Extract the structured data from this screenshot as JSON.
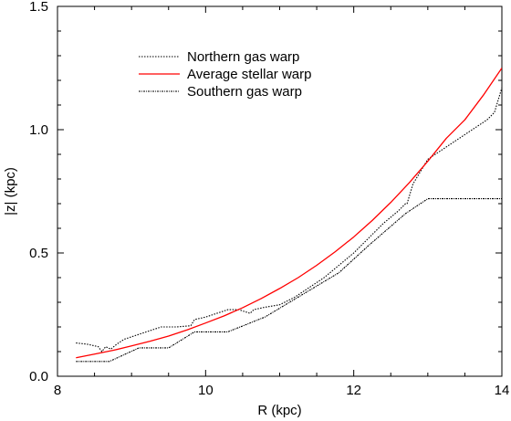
{
  "chart_data": {
    "type": "line",
    "title": "",
    "xlabel": "R (kpc)",
    "ylabel": "|z| (kpc)",
    "xlim": [
      8,
      14
    ],
    "ylim": [
      0,
      1.5
    ],
    "xticks": [
      8,
      10,
      12,
      14
    ],
    "yticks": [
      0,
      0.5,
      1.0,
      1.5
    ],
    "xtick_labels": [
      "8",
      "10",
      "12",
      "14"
    ],
    "ytick_labels": [
      "0.0",
      "0.5",
      "1.0",
      "1.5"
    ],
    "grid": false,
    "legend_position": "top-left",
    "series": [
      {
        "name": "Northern gas warp",
        "color": "#000000",
        "style": "dotted",
        "x": [
          8.25,
          8.4,
          8.55,
          8.6,
          8.65,
          8.72,
          8.8,
          8.9,
          9.0,
          9.2,
          9.4,
          9.6,
          9.8,
          9.85,
          10.0,
          10.2,
          10.3,
          10.45,
          10.6,
          10.65,
          10.8,
          11.0,
          11.2,
          11.4,
          11.6,
          11.8,
          12.0,
          12.2,
          12.4,
          12.6,
          12.7,
          12.72,
          12.8,
          13.0,
          13.2,
          13.4,
          13.6,
          13.8,
          13.9,
          14.0
        ],
        "y": [
          0.135,
          0.13,
          0.12,
          0.1,
          0.12,
          0.11,
          0.13,
          0.15,
          0.16,
          0.18,
          0.2,
          0.2,
          0.205,
          0.23,
          0.24,
          0.26,
          0.27,
          0.27,
          0.255,
          0.27,
          0.28,
          0.29,
          0.32,
          0.36,
          0.4,
          0.45,
          0.5,
          0.56,
          0.62,
          0.67,
          0.7,
          0.7,
          0.78,
          0.88,
          0.92,
          0.96,
          1.0,
          1.04,
          1.07,
          1.17
        ]
      },
      {
        "name": "Average stellar warp",
        "color": "#ff0000",
        "style": "solid",
        "x": [
          8.25,
          8.5,
          8.75,
          9.0,
          9.25,
          9.5,
          9.75,
          10.0,
          10.25,
          10.5,
          10.75,
          11.0,
          11.25,
          11.5,
          11.75,
          12.0,
          12.25,
          12.5,
          12.75,
          13.0,
          13.25,
          13.5,
          13.75,
          14.0
        ],
        "y": [
          0.075,
          0.09,
          0.105,
          0.123,
          0.142,
          0.163,
          0.188,
          0.216,
          0.245,
          0.278,
          0.315,
          0.356,
          0.4,
          0.45,
          0.505,
          0.565,
          0.632,
          0.705,
          0.785,
          0.872,
          0.965,
          1.04,
          1.14,
          1.25
        ]
      },
      {
        "name": "Southern gas warp",
        "color": "#000000",
        "style": "dashdot",
        "x": [
          8.25,
          8.7,
          9.1,
          9.5,
          9.85,
          10.3,
          10.8,
          11.3,
          11.8,
          12.2,
          12.7,
          13.0,
          13.5,
          14.0
        ],
        "y": [
          0.06,
          0.06,
          0.115,
          0.115,
          0.18,
          0.18,
          0.24,
          0.33,
          0.42,
          0.53,
          0.66,
          0.72,
          0.72,
          0.72
        ]
      }
    ]
  }
}
